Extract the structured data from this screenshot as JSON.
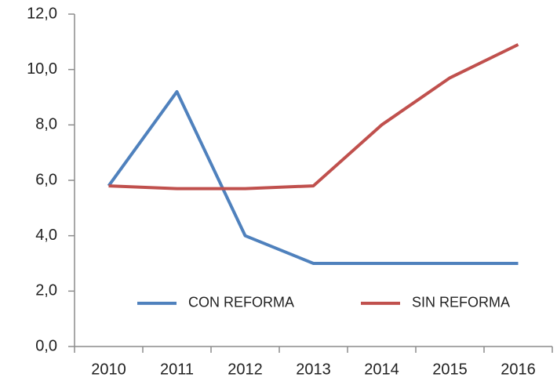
{
  "chart_data": {
    "type": "line",
    "categories": [
      "2010",
      "2011",
      "2012",
      "2013",
      "2014",
      "2015",
      "2016"
    ],
    "series": [
      {
        "name": "CON REFORMA",
        "color": "#4f81bd",
        "values": [
          5.8,
          9.2,
          4.0,
          3.0,
          3.0,
          3.0,
          3.0
        ]
      },
      {
        "name": "SIN REFORMA",
        "color": "#c0504d",
        "values": [
          5.8,
          5.7,
          5.7,
          5.8,
          8.0,
          9.7,
          10.9
        ]
      }
    ],
    "ylim": [
      0,
      12
    ],
    "yticks": [
      {
        "value": 0,
        "label": "0,0"
      },
      {
        "value": 2,
        "label": "2,0"
      },
      {
        "value": 4,
        "label": "4,0"
      },
      {
        "value": 6,
        "label": "6,0"
      },
      {
        "value": 8,
        "label": "8,0"
      },
      {
        "value": 10,
        "label": "10,0"
      },
      {
        "value": 12,
        "label": "12,0"
      }
    ],
    "legend": "lower center"
  }
}
